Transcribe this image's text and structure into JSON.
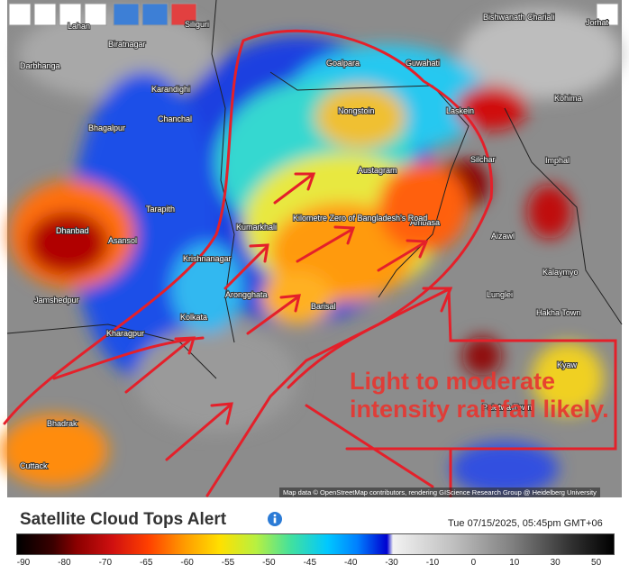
{
  "map": {
    "places": [
      "Siliguri",
      "Lahan",
      "Biratnagar",
      "Darbhanga",
      "Karandighi",
      "Chanchal",
      "Bhagalpur",
      "Goalpara",
      "Guwahati",
      "Nongstoin",
      "Laskein",
      "Kohima",
      "Bishwanath Chariali",
      "Jorhat",
      "Silchar",
      "Imphal",
      "Austagram",
      "Ambasa",
      "Aizawl",
      "Kalaymyo",
      "Kumarkhali",
      "Kilometre Zero of Bangladesh's Road",
      "Tarapith",
      "Dhanbad",
      "Asansol",
      "Krishnanagar",
      "Jamshedpur",
      "Arongghata",
      "Kolkata",
      "Barisal",
      "Kharagpur",
      "Lunglei",
      "Hakha Town",
      "Bhadrak",
      "Cuttack",
      "Paletwa Town",
      "Kyaw"
    ],
    "annotation": "Light to moderate intensity rainfall likely.",
    "attribution": "Map data © OpenStreetMap contributors, rendering GIScience Research Group @ Heidelberg University"
  },
  "legend": {
    "title": "Satellite Cloud Tops Alert",
    "timestamp": "Tue 07/15/2025, 05:45pm GMT+06",
    "ticks": [
      "-90",
      "-80",
      "-70",
      "-65",
      "-60",
      "-55",
      "-50",
      "-45",
      "-40",
      "-30",
      "-10",
      "0",
      "10",
      "30",
      "50"
    ]
  }
}
